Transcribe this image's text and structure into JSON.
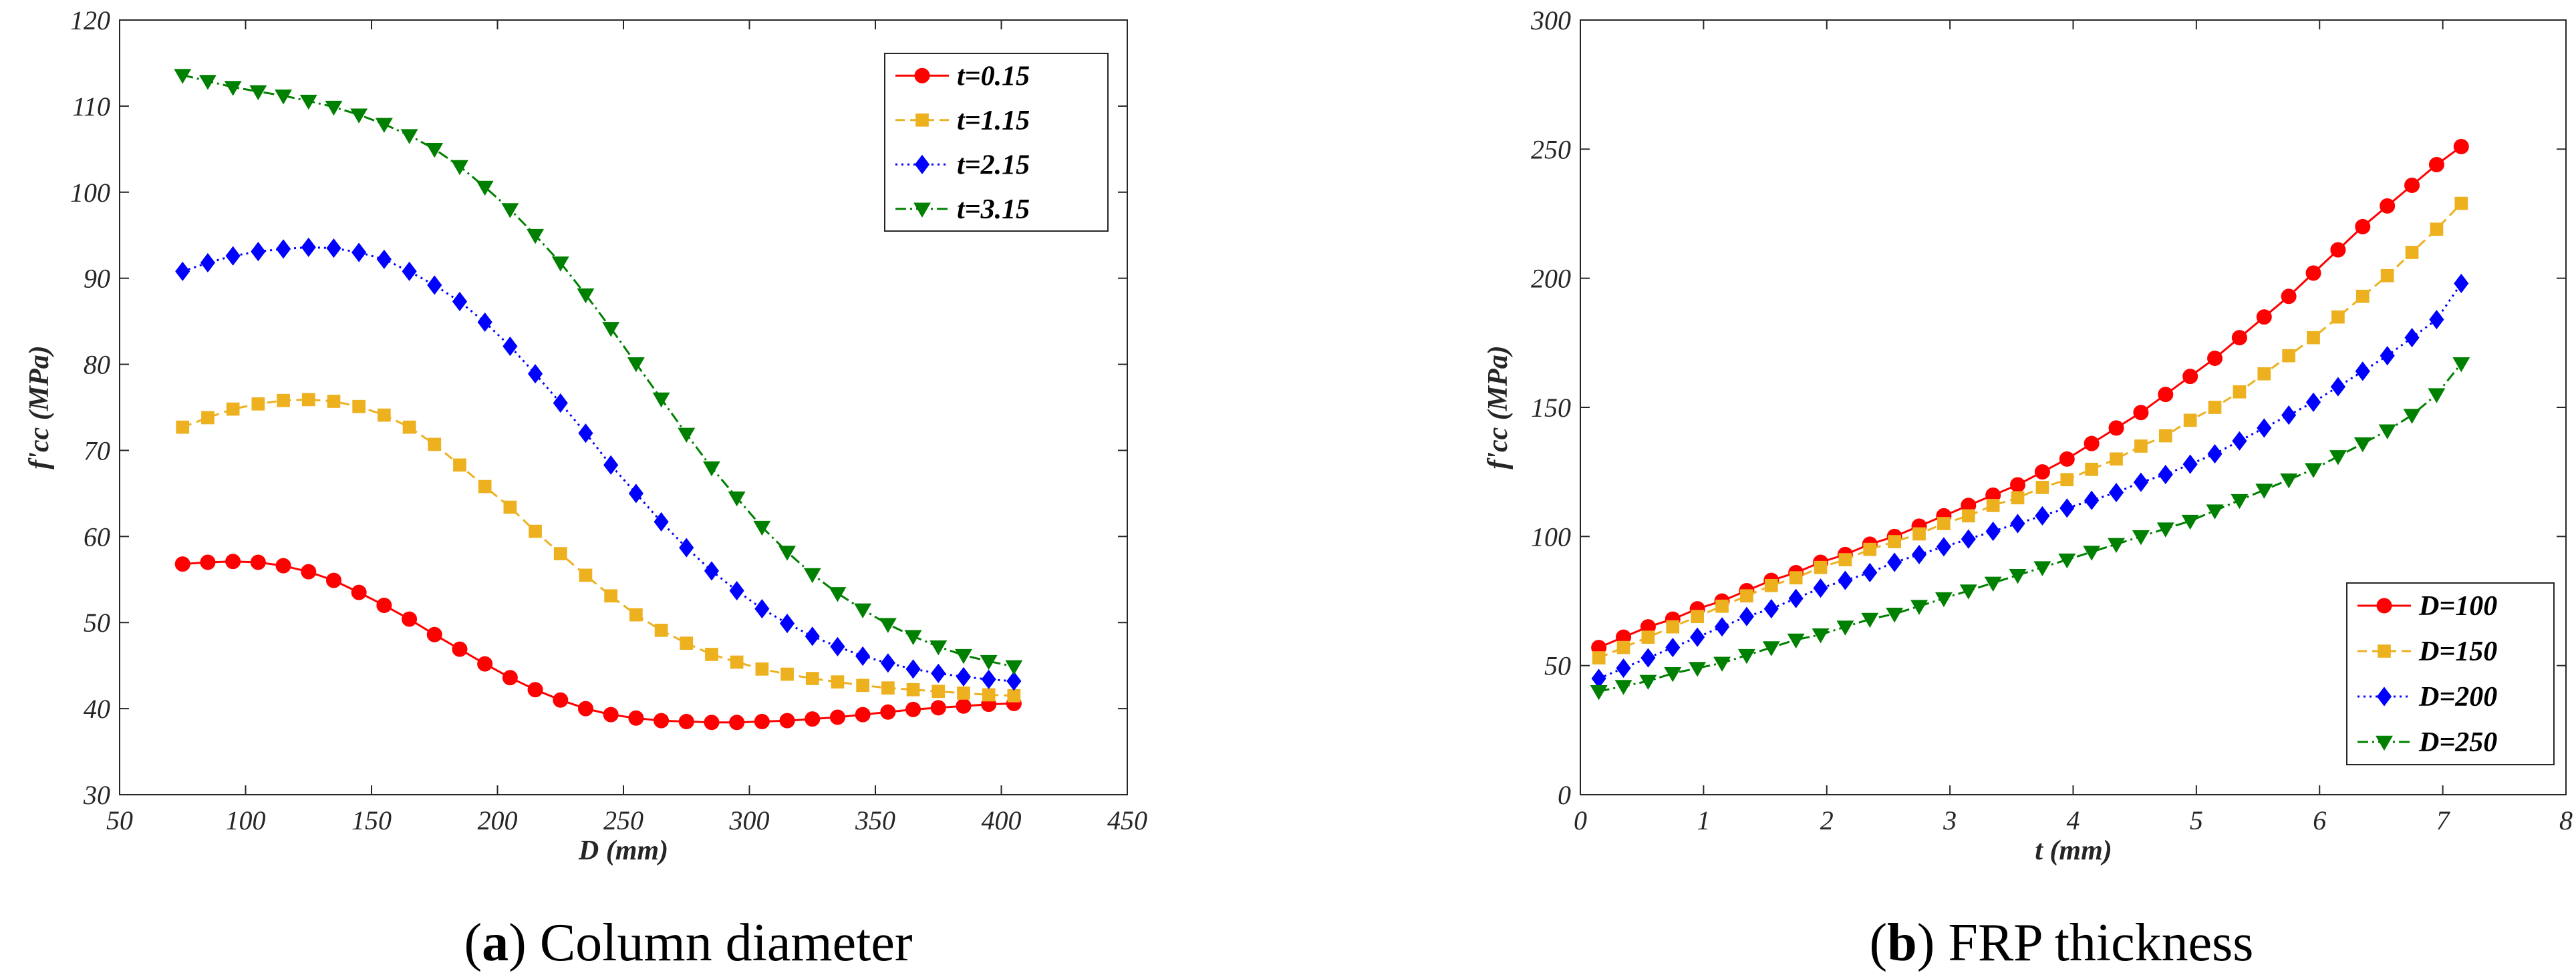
{
  "chart_data": [
    {
      "type": "line",
      "caption_letter": "a",
      "caption_prefix": "(",
      "caption_suffix": ") Column diameter",
      "xlabel": "D (mm)",
      "ylabel": "f'cc (MPa)",
      "xlim": [
        50,
        450
      ],
      "ylim": [
        30,
        120
      ],
      "xticks": [
        "50",
        "100",
        "150",
        "200",
        "250",
        "300",
        "350",
        "400",
        "450"
      ],
      "yticks": [
        "30",
        "40",
        "50",
        "60",
        "70",
        "80",
        "90",
        "100",
        "110",
        "120"
      ],
      "legend_position": "top-right",
      "x": [
        75,
        85,
        95,
        105,
        115,
        125,
        135,
        145,
        155,
        165,
        175,
        185,
        195,
        205,
        215,
        225,
        235,
        245,
        255,
        265,
        275,
        285,
        295,
        305,
        315,
        325,
        335,
        345,
        355,
        365,
        375,
        385,
        395,
        405
      ],
      "series": [
        {
          "name": "t=0.15",
          "color": "#ff0000",
          "marker": "circle",
          "dash": "",
          "values": [
            56.8,
            57.0,
            57.1,
            57.0,
            56.6,
            55.9,
            54.9,
            53.5,
            52.0,
            50.4,
            48.6,
            46.9,
            45.2,
            43.6,
            42.2,
            41.0,
            40.0,
            39.3,
            38.9,
            38.6,
            38.5,
            38.4,
            38.4,
            38.5,
            38.6,
            38.8,
            39.0,
            39.3,
            39.6,
            39.9,
            40.1,
            40.3,
            40.5,
            40.6
          ]
        },
        {
          "name": "t=1.15",
          "color": "#edb120",
          "marker": "square",
          "dash": "14,8",
          "values": [
            72.7,
            73.8,
            74.8,
            75.4,
            75.8,
            75.9,
            75.7,
            75.1,
            74.1,
            72.7,
            70.7,
            68.3,
            65.8,
            63.4,
            60.6,
            58.0,
            55.5,
            53.1,
            50.9,
            49.1,
            47.6,
            46.3,
            45.4,
            44.6,
            44.0,
            43.5,
            43.1,
            42.7,
            42.4,
            42.2,
            42.0,
            41.8,
            41.6,
            41.5
          ]
        },
        {
          "name": "t=2.15",
          "color": "#0000ff",
          "marker": "diamond",
          "dash": "3,6",
          "values": [
            90.8,
            91.8,
            92.6,
            93.1,
            93.4,
            93.6,
            93.5,
            93.0,
            92.2,
            90.8,
            89.2,
            87.3,
            84.9,
            82.1,
            78.9,
            75.5,
            72.0,
            68.3,
            65.0,
            61.7,
            58.7,
            56.0,
            53.7,
            51.6,
            49.9,
            48.4,
            47.2,
            46.1,
            45.3,
            44.6,
            44.1,
            43.7,
            43.4,
            43.2
          ]
        },
        {
          "name": "t=3.15",
          "color": "#008000",
          "marker": "triangle-down",
          "dash": "16,6,3,6",
          "values": [
            113.6,
            112.9,
            112.2,
            111.7,
            111.2,
            110.6,
            109.9,
            109.0,
            107.9,
            106.6,
            105.0,
            103.0,
            100.6,
            98.0,
            95.0,
            91.8,
            88.1,
            84.2,
            80.1,
            76.0,
            71.9,
            68.0,
            64.5,
            61.1,
            58.2,
            55.6,
            53.4,
            51.5,
            49.8,
            48.4,
            47.2,
            46.2,
            45.5,
            44.9
          ]
        }
      ]
    },
    {
      "type": "line",
      "caption_letter": "b",
      "caption_prefix": "(",
      "caption_suffix": ") FRP thickness",
      "xlabel": "t (mm)",
      "ylabel": "f'cc (MPa)",
      "xlim": [
        0,
        8
      ],
      "ylim": [
        0,
        300
      ],
      "xticks": [
        "0",
        "1",
        "2",
        "3",
        "4",
        "5",
        "6",
        "7",
        "8"
      ],
      "yticks": [
        "0",
        "50",
        "100",
        "150",
        "200",
        "250",
        "300"
      ],
      "legend_position": "bottom-right",
      "x": [
        0.15,
        0.35,
        0.55,
        0.75,
        0.95,
        1.15,
        1.35,
        1.55,
        1.75,
        1.95,
        2.15,
        2.35,
        2.55,
        2.75,
        2.95,
        3.15,
        3.35,
        3.55,
        3.75,
        3.95,
        4.15,
        4.35,
        4.55,
        4.75,
        4.95,
        5.15,
        5.35,
        5.55,
        5.75,
        5.95,
        6.15,
        6.35,
        6.55,
        6.75,
        6.95,
        7.15
      ],
      "series": [
        {
          "name": "D=100",
          "color": "#ff0000",
          "marker": "circle",
          "dash": "",
          "values": [
            57,
            61,
            65,
            68,
            72,
            75,
            79,
            83,
            86,
            90,
            93,
            97,
            100,
            104,
            108,
            112,
            116,
            120,
            125,
            130,
            136,
            142,
            148,
            155,
            162,
            169,
            177,
            185,
            193,
            202,
            211,
            220,
            228,
            236,
            244,
            251
          ]
        },
        {
          "name": "D=150",
          "color": "#edb120",
          "marker": "square",
          "dash": "14,8",
          "values": [
            53,
            57,
            61,
            65,
            69,
            73,
            77,
            81,
            84,
            88,
            91,
            95,
            98,
            101,
            105,
            108,
            112,
            115,
            119,
            122,
            126,
            130,
            135,
            139,
            145,
            150,
            156,
            163,
            170,
            177,
            185,
            193,
            201,
            210,
            219,
            229
          ]
        },
        {
          "name": "D=200",
          "color": "#0000ff",
          "marker": "diamond",
          "dash": "3,6",
          "values": [
            45,
            49,
            53,
            57,
            61,
            65,
            69,
            72,
            76,
            80,
            83,
            86,
            90,
            93,
            96,
            99,
            102,
            105,
            108,
            111,
            114,
            117,
            121,
            124,
            128,
            132,
            137,
            142,
            147,
            152,
            158,
            164,
            170,
            177,
            184,
            198
          ]
        },
        {
          "name": "D=250",
          "color": "#008000",
          "marker": "triangle-down",
          "dash": "16,6,3,6",
          "values": [
            40,
            42,
            44,
            47,
            49,
            51,
            54,
            57,
            60,
            62,
            65,
            68,
            70,
            73,
            76,
            79,
            82,
            85,
            88,
            91,
            94,
            97,
            100,
            103,
            106,
            110,
            114,
            118,
            122,
            126,
            131,
            136,
            141,
            147,
            155,
            167
          ]
        }
      ]
    }
  ]
}
